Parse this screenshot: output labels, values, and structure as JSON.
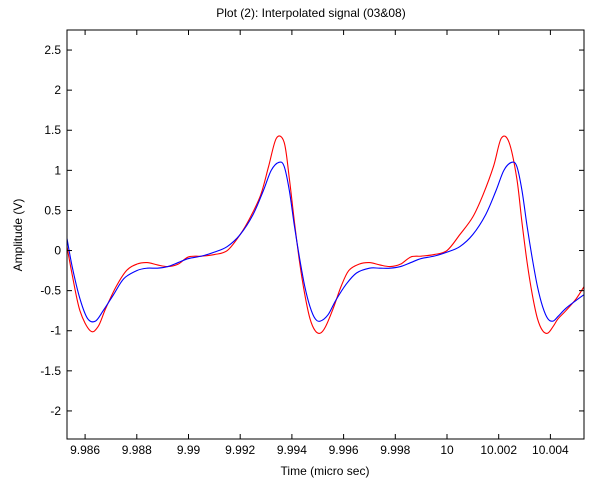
{
  "chart_data": {
    "type": "line",
    "title": "Plot (2): Interpolated signal (03&08)",
    "xlabel": "Time (micro sec)",
    "ylabel": "Amplitude (V)",
    "xlim": [
      9.9853,
      10.0053
    ],
    "ylim": [
      -2.35,
      2.75
    ],
    "grid": false,
    "x_ticks": [
      9.986,
      9.988,
      9.99,
      9.992,
      9.994,
      9.996,
      9.998,
      10,
      10.002,
      10.004
    ],
    "x_tick_labels": [
      "9.986",
      "9.988",
      "9.99",
      "9.992",
      "9.994",
      "9.996",
      "9.998",
      "10",
      "10.002",
      "10.004"
    ],
    "y_ticks": [
      2.5,
      2,
      1.5,
      1,
      0.5,
      0,
      -0.5,
      -1,
      -1.5,
      -2
    ],
    "y_tick_labels": [
      "2.5",
      "2",
      "1.5",
      "1",
      "0.5",
      "0",
      "-0.5",
      "-1",
      "-1.5",
      "-2"
    ],
    "series": [
      {
        "color": "#ff0000",
        "x": [
          9.9853,
          9.9855,
          9.9858,
          9.9862,
          9.9865,
          9.9868,
          9.9872,
          9.9876,
          9.988,
          9.9884,
          9.9888,
          9.9892,
          9.9896,
          9.99,
          9.9905,
          9.991,
          9.9915,
          9.992,
          9.9924,
          9.9928,
          9.9931,
          9.9934,
          9.9937,
          9.9939,
          9.9941,
          9.9943,
          9.9945,
          9.9947,
          9.9949,
          9.9951,
          9.9953,
          9.9956,
          9.9959,
          9.9962,
          9.9966,
          9.997,
          9.9974,
          9.9978,
          9.9982,
          9.9986,
          9.999,
          9.9995,
          10.0,
          10.0005,
          10.001,
          10.0014,
          10.0018,
          10.0021,
          10.0024,
          10.0027,
          10.0029,
          10.0031,
          10.0033,
          10.0035,
          10.0037,
          10.0039,
          10.0041,
          10.0043,
          10.0046,
          10.005,
          10.0053
        ],
        "y": [
          0.05,
          -0.3,
          -0.75,
          -1.0,
          -0.95,
          -0.72,
          -0.45,
          -0.25,
          -0.17,
          -0.15,
          -0.18,
          -0.2,
          -0.17,
          -0.08,
          -0.07,
          -0.05,
          0.0,
          0.2,
          0.42,
          0.7,
          1.05,
          1.4,
          1.35,
          0.9,
          0.35,
          -0.15,
          -0.55,
          -0.85,
          -1.0,
          -1.03,
          -0.95,
          -0.72,
          -0.45,
          -0.25,
          -0.17,
          -0.15,
          -0.18,
          -0.2,
          -0.17,
          -0.08,
          -0.07,
          -0.05,
          0.0,
          0.2,
          0.42,
          0.7,
          1.05,
          1.4,
          1.35,
          0.9,
          0.35,
          -0.15,
          -0.55,
          -0.85,
          -1.0,
          -1.03,
          -0.95,
          -0.85,
          -0.75,
          -0.6,
          -0.45
        ]
      },
      {
        "color": "#0000ff",
        "x": [
          9.9853,
          9.9855,
          9.9858,
          9.9861,
          9.9864,
          9.9867,
          9.9871,
          9.9875,
          9.988,
          9.9884,
          9.9888,
          9.9892,
          9.9896,
          9.99,
          9.9905,
          9.991,
          9.9915,
          9.992,
          9.9925,
          9.9929,
          9.9932,
          9.9935,
          9.9937,
          9.9939,
          9.9941,
          9.9943,
          9.9945,
          9.9947,
          9.9949,
          9.9951,
          9.9954,
          9.9957,
          9.9961,
          9.9965,
          9.997,
          9.9974,
          9.9978,
          9.9982,
          9.9986,
          9.999,
          9.9995,
          10.0,
          10.0005,
          10.001,
          10.0015,
          10.0019,
          10.0022,
          10.0025,
          10.0027,
          10.0029,
          10.0031,
          10.0033,
          10.0035,
          10.0037,
          10.0039,
          10.0041,
          10.0043,
          10.0046,
          10.005,
          10.0053
        ],
        "y": [
          0.15,
          -0.2,
          -0.6,
          -0.85,
          -0.88,
          -0.75,
          -0.55,
          -0.35,
          -0.25,
          -0.22,
          -0.22,
          -0.2,
          -0.15,
          -0.1,
          -0.07,
          -0.02,
          0.05,
          0.2,
          0.45,
          0.75,
          1.0,
          1.1,
          1.05,
          0.75,
          0.3,
          -0.1,
          -0.45,
          -0.7,
          -0.85,
          -0.88,
          -0.8,
          -0.62,
          -0.42,
          -0.28,
          -0.22,
          -0.22,
          -0.22,
          -0.2,
          -0.15,
          -0.1,
          -0.07,
          -0.02,
          0.05,
          0.2,
          0.45,
          0.75,
          1.0,
          1.1,
          1.05,
          0.75,
          0.3,
          -0.1,
          -0.45,
          -0.7,
          -0.85,
          -0.88,
          -0.82,
          -0.72,
          -0.62,
          -0.55
        ]
      }
    ]
  }
}
